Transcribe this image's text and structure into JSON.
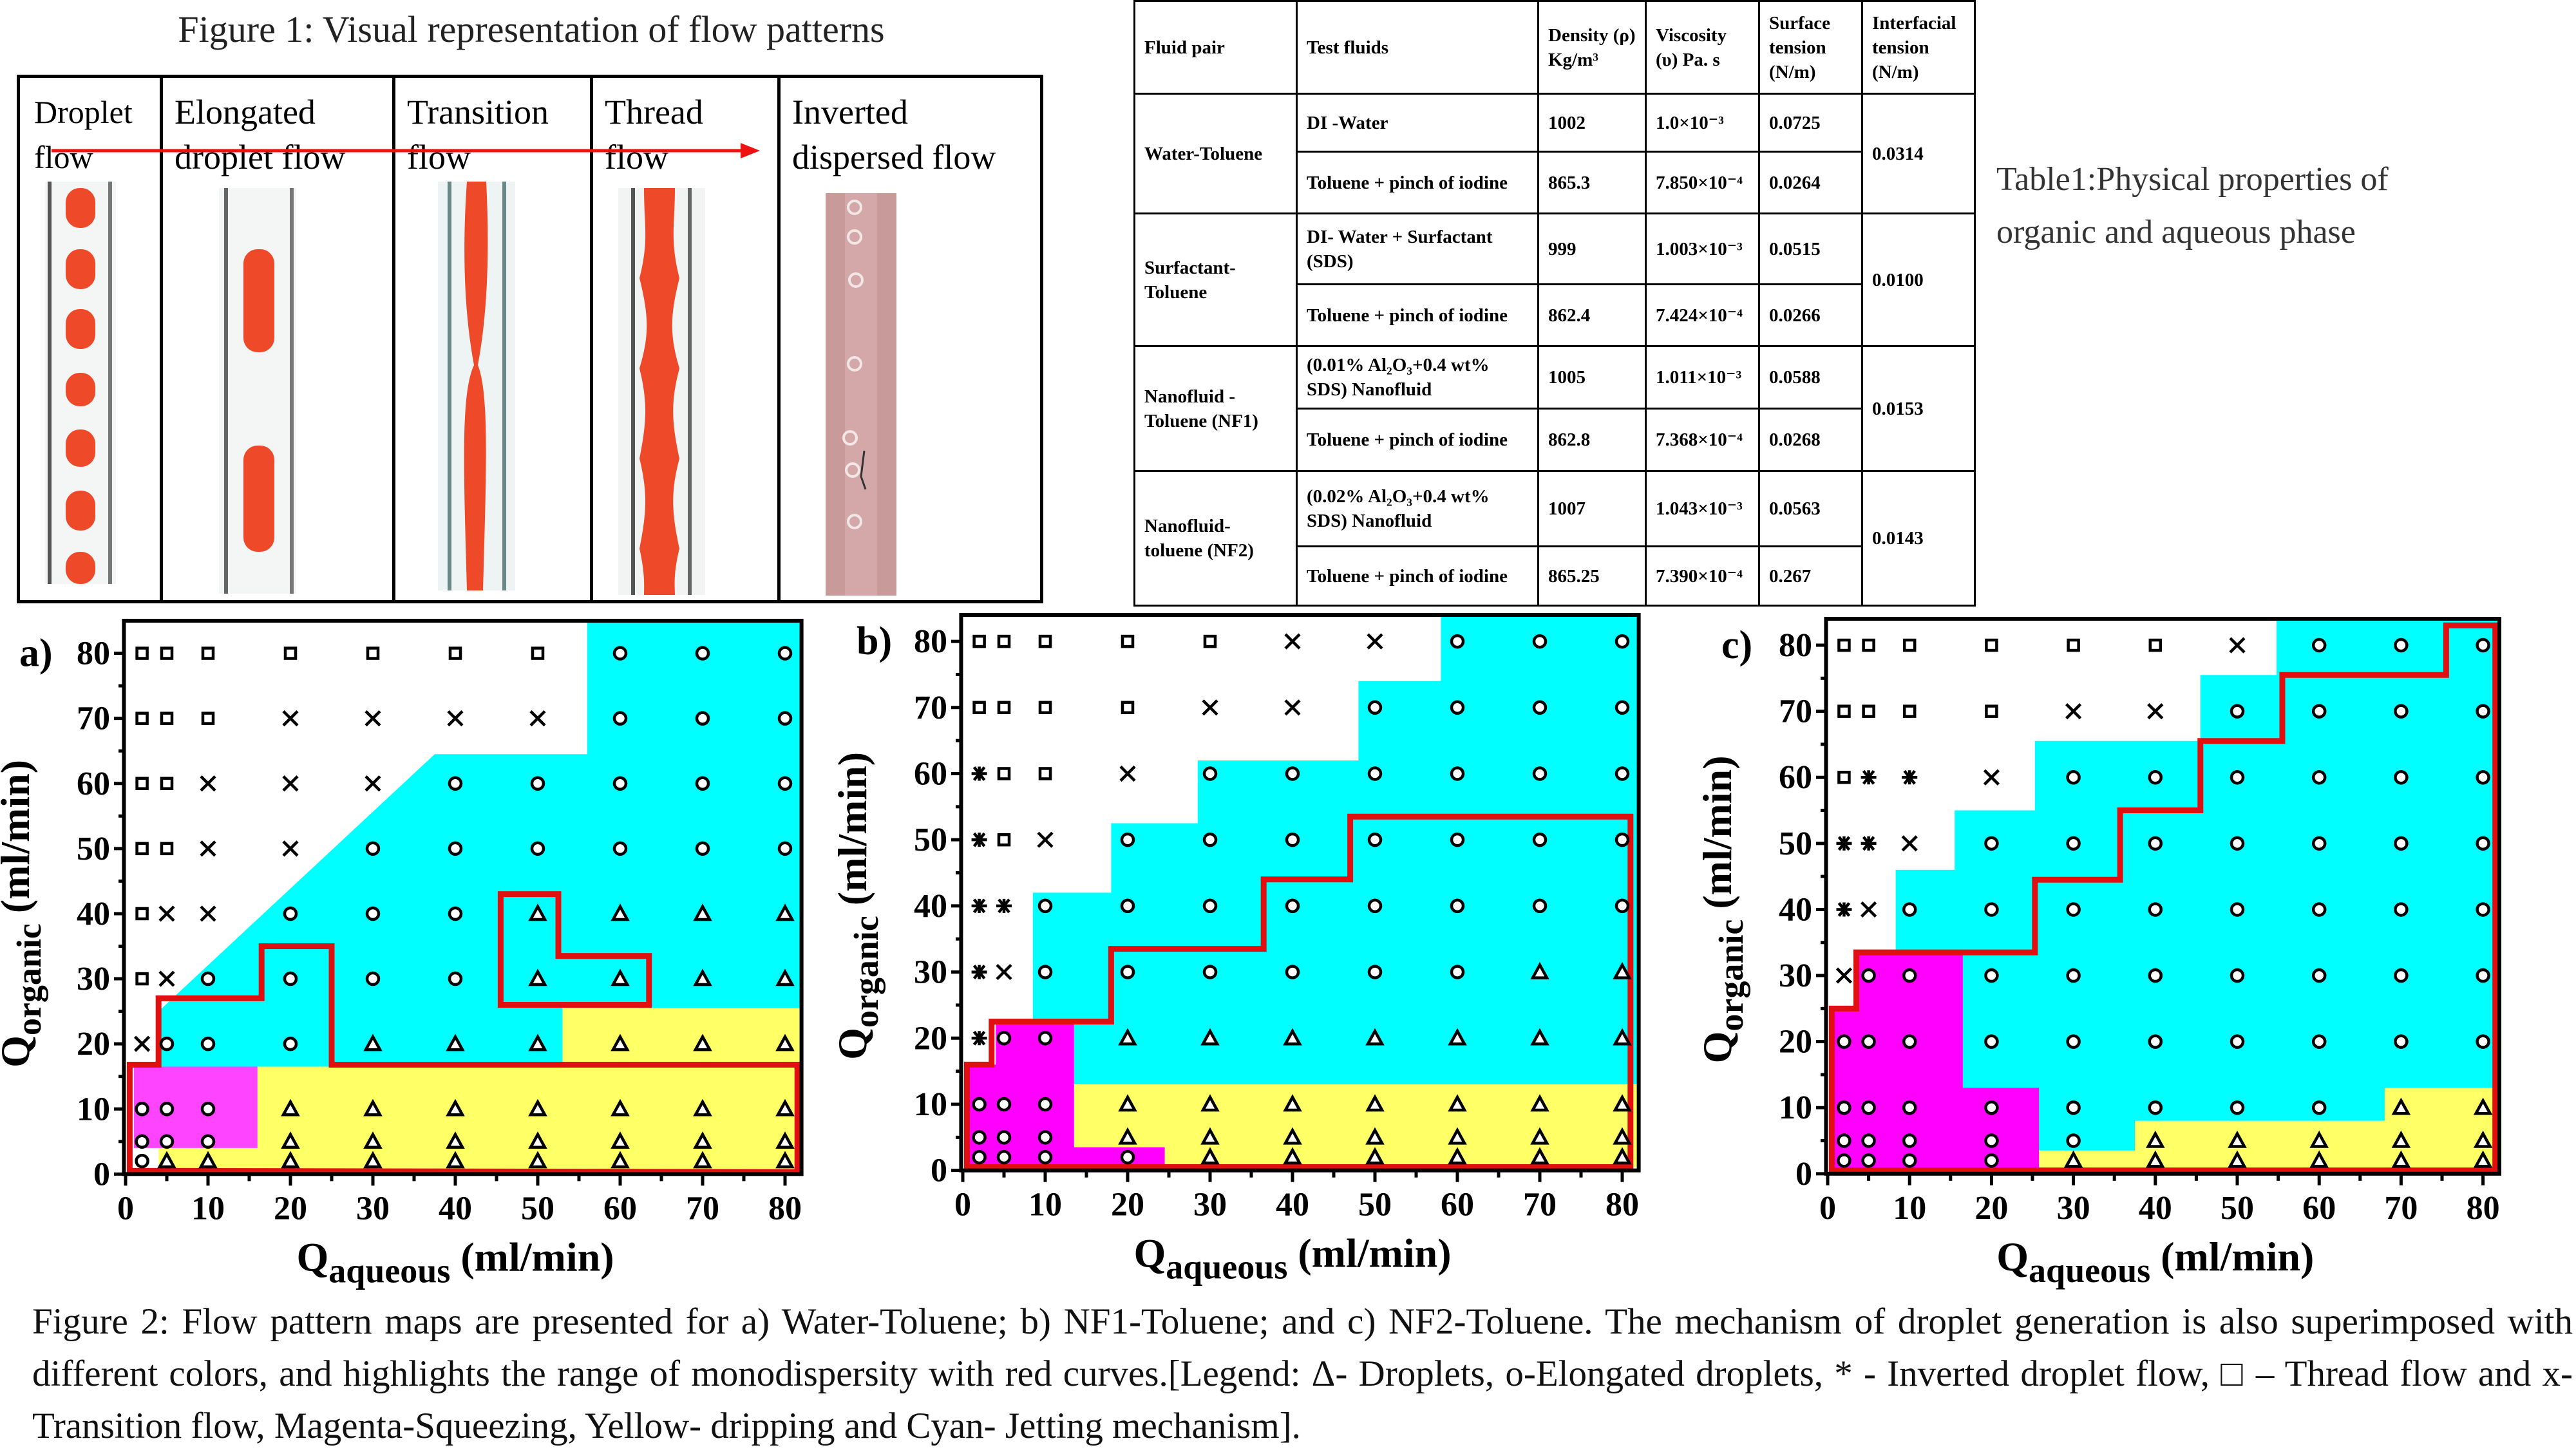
{
  "figure1": {
    "title": "Figure 1: Visual representation of flow patterns",
    "columns": [
      {
        "label": "Droplet\nflow"
      },
      {
        "label": "Elongated\ndroplet flow"
      },
      {
        "label": "Transition\nflow"
      },
      {
        "label": "Thread\nflow"
      },
      {
        "label": "Inverted\ndispersed flow"
      }
    ],
    "colors": {
      "droplet": "#ee4a2a",
      "tube_wall": "#555555",
      "inverted_bg": "#c99a9a"
    }
  },
  "table1": {
    "caption_line1": "Table1:Physical properties of",
    "caption_line2": "organic and aqueous phase",
    "headers": [
      "Fluid pair",
      "Test fluids",
      "Density (ρ) Kg/m³",
      "Viscosity (υ) Pa. s",
      "Surface tension (N/m)",
      "Interfacial tension (N/m)"
    ],
    "groups": [
      {
        "pair": "Water-Toluene",
        "interfacial": "0.0314",
        "rows": [
          {
            "fluid": "DI -Water",
            "density": "1002",
            "viscosity": "1.0×10⁻³",
            "surface": "0.0725"
          },
          {
            "fluid": "Toluene + pinch of iodine",
            "density": "865.3",
            "viscosity": "7.850×10⁻⁴",
            "surface": "0.0264"
          }
        ]
      },
      {
        "pair": "Surfactant-Toluene",
        "interfacial": "0.0100",
        "rows": [
          {
            "fluid": "DI- Water + Surfactant (SDS)",
            "density": "999",
            "viscosity": "1.003×10⁻³",
            "surface": "0.0515"
          },
          {
            "fluid": "Toluene + pinch of iodine",
            "density": "862.4",
            "viscosity": "7.424×10⁻⁴",
            "surface": "0.0266"
          }
        ]
      },
      {
        "pair": "Nanofluid - Toluene (NF1)",
        "interfacial": "0.0153",
        "rows": [
          {
            "fluid": "(0.01% Al₂O₃+0.4 wt% SDS) Nanofluid",
            "density": "1005",
            "viscosity": "1.011×10⁻³",
            "surface": "0.0588"
          },
          {
            "fluid": "Toluene + pinch of iodine",
            "density": "862.8",
            "viscosity": "7.368×10⁻⁴",
            "surface": "0.0268"
          }
        ]
      },
      {
        "pair": "Nanofluid-toluene (NF2)",
        "interfacial": "0.0143",
        "rows": [
          {
            "fluid": "(0.02% Al₂O₃+0.4 wt% SDS) Nanofluid",
            "density": "1007",
            "viscosity": "1.043×10⁻³",
            "surface": "0.0563"
          },
          {
            "fluid": "Toluene + pinch of iodine",
            "density": "865.25",
            "viscosity": "7.390×10⁻⁴",
            "surface": "0.267"
          }
        ]
      }
    ]
  },
  "chart_data": [
    {
      "type": "scatter",
      "panel_label": "a)",
      "xlabel_main": "Q",
      "xlabel_sub": "aqueous",
      "xlabel_unit": " (ml/min)",
      "ylabel_main": "Q",
      "ylabel_sub": "organic",
      "ylabel_unit": " (ml/min)",
      "xlim": [
        0,
        82
      ],
      "ylim": [
        0,
        85
      ],
      "xticks": [
        0,
        10,
        20,
        30,
        40,
        50,
        60,
        70,
        80
      ],
      "yticks": [
        0,
        10,
        20,
        30,
        40,
        50,
        60,
        70,
        80
      ],
      "x": [
        2,
        5,
        10,
        20,
        30,
        40,
        50,
        60,
        70,
        80
      ],
      "y": [
        80,
        70,
        60,
        50,
        40,
        30,
        20,
        10,
        5,
        2
      ],
      "symbols": [
        "sssssssooo",
        "sssxxxxooo",
        "ssxxxooooo",
        "ssxxoooooo",
        "sxxoootttt",
        "sxooootttt",
        "xoootttttt",
        "ooottttttt",
        "ooottttttt",
        "ottttttttt"
      ],
      "regions": [
        {
          "mechanism": "Cyan",
          "color": "#00ffff",
          "points": [
            [
              4,
              16.5
            ],
            [
              4,
              25
            ],
            [
              37.5,
              64.5
            ],
            [
              56,
              64.5
            ],
            [
              56,
              85
            ],
            [
              82,
              85
            ],
            [
              82,
              25.5
            ],
            [
              53,
              25.5
            ],
            [
              53,
              16.5
            ]
          ]
        },
        {
          "mechanism": "Yellow",
          "color": "#ffff66",
          "points": [
            [
              4,
              0.5
            ],
            [
              4,
              4
            ],
            [
              16,
              4
            ],
            [
              16,
              16.5
            ],
            [
              53,
              16.5
            ],
            [
              53,
              25.5
            ],
            [
              82,
              25.5
            ],
            [
              82,
              0.5
            ]
          ]
        },
        {
          "mechanism": "Magenta",
          "color": "#ff44ff",
          "points": [
            [
              1,
              4
            ],
            [
              1,
              16.5
            ],
            [
              16,
              16.5
            ],
            [
              16,
              4
            ]
          ]
        }
      ],
      "monodisperse_boundaries": [
        [
          [
            0.5,
            0.5
          ],
          [
            0.5,
            16.8
          ],
          [
            4,
            16.8
          ],
          [
            4,
            27
          ],
          [
            16.5,
            27
          ],
          [
            16.5,
            35
          ],
          [
            25,
            35
          ],
          [
            25,
            16.8
          ],
          [
            81.5,
            16.8
          ],
          [
            81.5,
            0.3
          ]
        ],
        [
          [
            45.5,
            26
          ],
          [
            45.5,
            43
          ],
          [
            52.5,
            43
          ],
          [
            52.5,
            33.5
          ],
          [
            63.5,
            33.5
          ],
          [
            63.5,
            26
          ]
        ]
      ]
    },
    {
      "type": "scatter",
      "panel_label": "b)",
      "xlabel_main": "Q",
      "xlabel_sub": "aqueous",
      "xlabel_unit": " (ml/min)",
      "ylabel_main": "Q",
      "ylabel_sub": "organic",
      "ylabel_unit": " (ml/min)",
      "xlim": [
        0,
        82
      ],
      "ylim": [
        0,
        84
      ],
      "xticks": [
        0,
        10,
        20,
        30,
        40,
        50,
        60,
        70,
        80
      ],
      "yticks": [
        0,
        10,
        20,
        30,
        40,
        50,
        60,
        70,
        80
      ],
      "x": [
        2,
        5,
        10,
        20,
        30,
        40,
        50,
        60,
        70,
        80
      ],
      "y": [
        80,
        70,
        60,
        50,
        40,
        30,
        20,
        10,
        5,
        2
      ],
      "symbols": [
        "sssssxxooo",
        "ssssxxoooo",
        "*ssxoooooo",
        "*sxooooooo",
        "**oooooooo",
        "*xoooooott",
        "*oottttttt",
        "ooottttttt",
        "ooottttttt",
        "ooootttttt"
      ],
      "regions": [
        {
          "mechanism": "Cyan",
          "color": "#00ffff",
          "points": [
            [
              8.5,
              22.5
            ],
            [
              8.5,
              42
            ],
            [
              18,
              42
            ],
            [
              18,
              52.5
            ],
            [
              28.5,
              52.5
            ],
            [
              28.5,
              62
            ],
            [
              48,
              62
            ],
            [
              48,
              74
            ],
            [
              58,
              74
            ],
            [
              58,
              84
            ],
            [
              82,
              84
            ],
            [
              82,
              13
            ],
            [
              13.5,
              13
            ],
            [
              13.5,
              22.5
            ]
          ]
        },
        {
          "mechanism": "Yellow",
          "color": "#ffff66",
          "points": [
            [
              13.5,
              3.5
            ],
            [
              13.5,
              13
            ],
            [
              82,
              13
            ],
            [
              82,
              0.5
            ],
            [
              24.5,
              0.5
            ],
            [
              24.5,
              3.5
            ]
          ]
        },
        {
          "mechanism": "Magenta",
          "color": "#ff00ff",
          "points": [
            [
              0.5,
              0.5
            ],
            [
              0.5,
              16
            ],
            [
              4,
              16
            ],
            [
              4,
              22.5
            ],
            [
              13.5,
              22.5
            ],
            [
              13.5,
              3.5
            ],
            [
              24.5,
              3.5
            ],
            [
              24.5,
              0.5
            ]
          ]
        }
      ],
      "monodisperse_boundaries": [
        [
          [
            0.5,
            0.5
          ],
          [
            0.5,
            16
          ],
          [
            3.5,
            16
          ],
          [
            3.5,
            22.5
          ],
          [
            18,
            22.5
          ],
          [
            18,
            33.5
          ],
          [
            36.5,
            33.5
          ],
          [
            36.5,
            44
          ],
          [
            47,
            44
          ],
          [
            47,
            53.5
          ],
          [
            81,
            53.5
          ],
          [
            81,
            0.5
          ]
        ]
      ]
    },
    {
      "type": "scatter",
      "panel_label": "c)",
      "xlabel_main": "Q",
      "xlabel_sub": "aqueous",
      "xlabel_unit": " (ml/min)",
      "ylabel_main": "Q",
      "ylabel_sub": "organic",
      "ylabel_unit": " (ml/min)",
      "xlim": [
        0,
        82
      ],
      "ylim": [
        0,
        84
      ],
      "xticks": [
        0,
        10,
        20,
        30,
        40,
        50,
        60,
        70,
        80
      ],
      "yticks": [
        0,
        10,
        20,
        30,
        40,
        50,
        60,
        70,
        80
      ],
      "x": [
        2,
        5,
        10,
        20,
        30,
        40,
        50,
        60,
        70,
        80
      ],
      "y": [
        80,
        70,
        60,
        50,
        40,
        30,
        20,
        10,
        5,
        2
      ],
      "symbols": [
        "ssssssxooo",
        "ssssxxoooo",
        "s**xoooooo",
        "**xooooooo",
        "*xoooooooo",
        "xooooooooo",
        "oooooooooo",
        "oooooooott",
        "ooooottttt",
        "ooootttttt"
      ],
      "regions": [
        {
          "mechanism": "Cyan",
          "color": "#00ffff",
          "points": [
            [
              8.3,
              33.5
            ],
            [
              8.3,
              46
            ],
            [
              15.5,
              46
            ],
            [
              15.5,
              55
            ],
            [
              25.3,
              55
            ],
            [
              25.3,
              65.5
            ],
            [
              45.5,
              65.5
            ],
            [
              45.5,
              75.5
            ],
            [
              54.8,
              75.5
            ],
            [
              54.8,
              84
            ],
            [
              82,
              84
            ],
            [
              82,
              13
            ],
            [
              68,
              13
            ],
            [
              68,
              8
            ],
            [
              37.5,
              8
            ],
            [
              37.5,
              3.5
            ],
            [
              25.8,
              3.5
            ],
            [
              25.8,
              13
            ],
            [
              16.5,
              13
            ],
            [
              16.5,
              33.5
            ]
          ]
        },
        {
          "mechanism": "Yellow",
          "color": "#ffff66",
          "points": [
            [
              25.8,
              0.5
            ],
            [
              25.8,
              3.5
            ],
            [
              37.5,
              3.5
            ],
            [
              37.5,
              8
            ],
            [
              68,
              8
            ],
            [
              68,
              13
            ],
            [
              82,
              13
            ],
            [
              82,
              0.5
            ]
          ]
        },
        {
          "mechanism": "Magenta",
          "color": "#ff00ff",
          "points": [
            [
              0.5,
              0.5
            ],
            [
              0.5,
              25
            ],
            [
              3.5,
              25
            ],
            [
              3.5,
              33.5
            ],
            [
              16.5,
              33.5
            ],
            [
              16.5,
              13
            ],
            [
              25.8,
              13
            ],
            [
              25.8,
              0.5
            ]
          ]
        }
      ],
      "monodisperse_boundaries": [
        [
          [
            0.5,
            0.5
          ],
          [
            0.5,
            25
          ],
          [
            3.5,
            25
          ],
          [
            3.5,
            33.5
          ],
          [
            25.3,
            33.5
          ],
          [
            25.3,
            44.5
          ],
          [
            35.7,
            44.5
          ],
          [
            35.7,
            55
          ],
          [
            45.5,
            55
          ],
          [
            45.5,
            65.5
          ],
          [
            55.5,
            65.5
          ],
          [
            55.5,
            75.5
          ],
          [
            75.5,
            75.5
          ],
          [
            75.5,
            83
          ],
          [
            81.5,
            83
          ],
          [
            81.5,
            0.5
          ]
        ]
      ]
    }
  ],
  "symbol_key": {
    "t": "Droplets",
    "o": "Elongated droplets",
    "*": "Inverted droplet flow",
    "s": "Thread flow",
    "x": "Transition flow"
  },
  "boundary_color": "#e01010",
  "caption": "Figure 2: Flow pattern maps are presented for a) Water-Toluene; b) NF1-Toluene; and c) NF2-Toluene. The mechanism of droplet generation is also superimposed with different colors, and highlights the range of monodispersity with red curves.[Legend: Δ- Droplets, o-Elongated droplets, * - Inverted droplet flow, □ – Thread flow and x- Transition flow, Magenta-Squeezing, Yellow- dripping and Cyan- Jetting mechanism]."
}
